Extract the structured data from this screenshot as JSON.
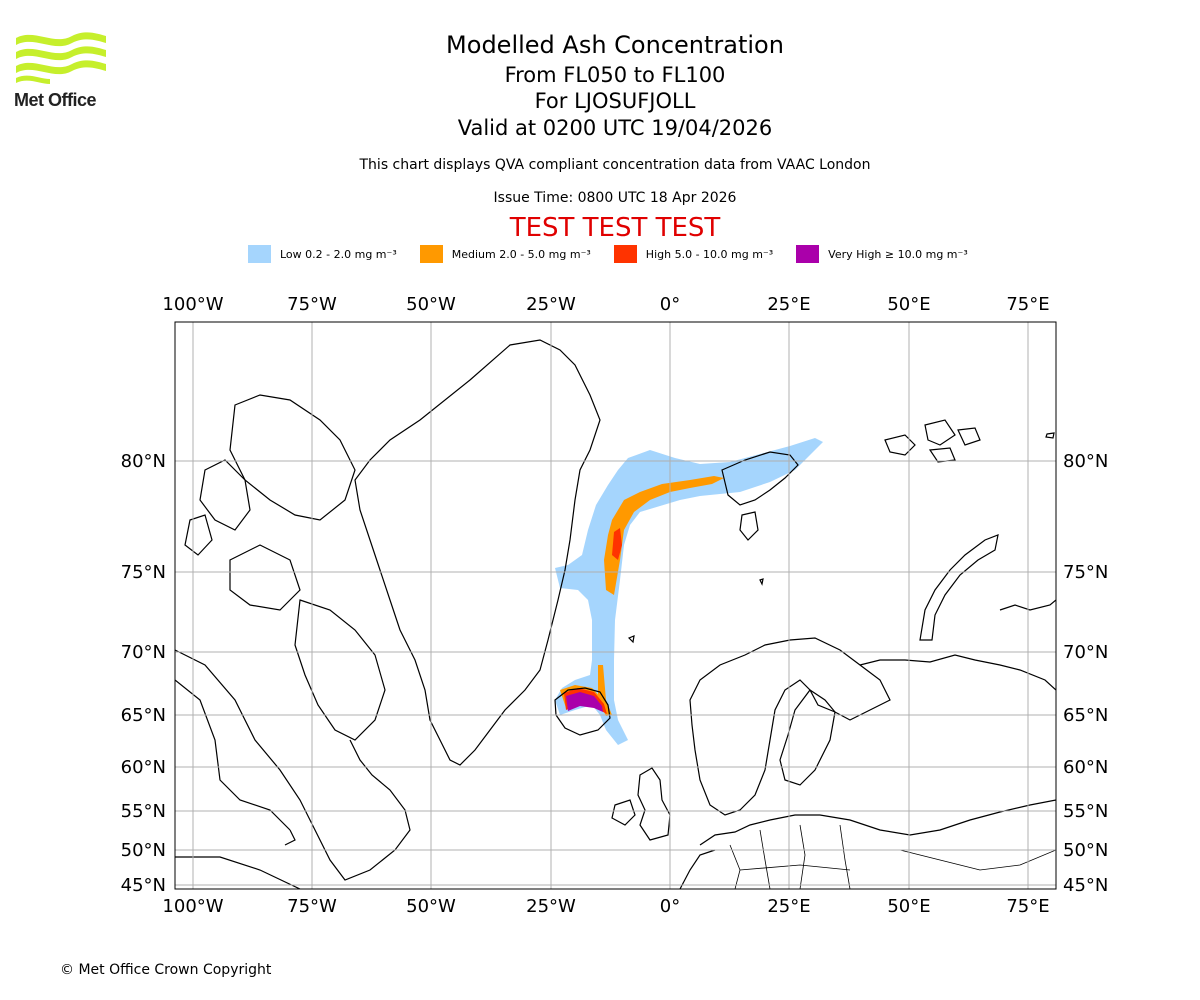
{
  "logo": {
    "name": "Met Office"
  },
  "titles": {
    "main": "Modelled Ash Concentration",
    "levels": "From FL050 to FL100",
    "location": "For LJOSUFJOLL",
    "valid": "Valid at 0200 UTC 19/04/2026",
    "subtitle": "This chart displays QVA compliant concentration data from VAAC London",
    "issue_time": "Issue Time: 0800 UTC 18 Apr 2026",
    "test_banner": "TEST TEST TEST"
  },
  "legend": [
    {
      "label": "Low 0.2 - 2.0 mg m⁻³",
      "color": "#a5d5fd"
    },
    {
      "label": "Medium 2.0 - 5.0 mg m⁻³",
      "color": "#ff9900"
    },
    {
      "label": "High 5.0 - 10.0 mg m⁻³",
      "color": "#ff3300"
    },
    {
      "label": "Very High ≥ 10.0 mg m⁻³",
      "color": "#aa00aa"
    }
  ],
  "axes": {
    "lon_ticks": [
      "100°W",
      "75°W",
      "50°W",
      "25°W",
      "0°",
      "25°E",
      "50°E",
      "75°E"
    ],
    "lat_ticks": [
      "80°N",
      "75°N",
      "70°N",
      "65°N",
      "60°N",
      "55°N",
      "50°N",
      "45°N"
    ]
  },
  "footer": "© Met Office Crown Copyright"
}
